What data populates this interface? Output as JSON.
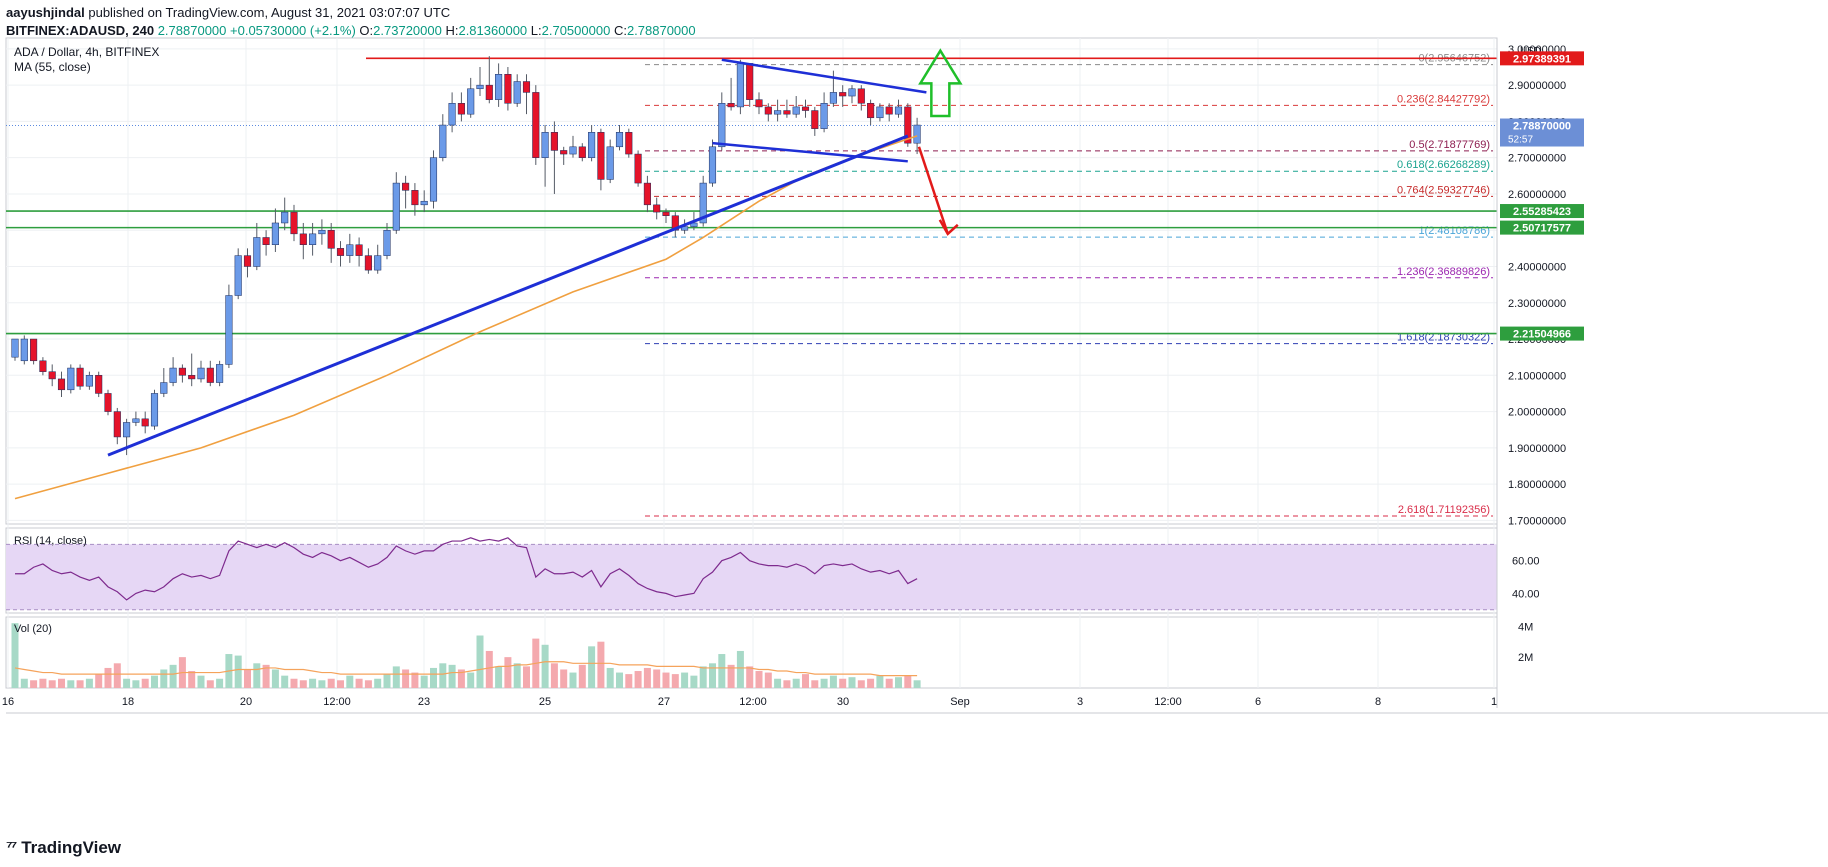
{
  "header": {
    "publisher": "aayushjindal",
    "published_text": " published on TradingView.com, August 31, 2021 03:07:07 UTC",
    "symbol": "BITFINEX:ADAUSD, 240",
    "last": "2.78870000",
    "change": "+0.05730000 (+2.1%)",
    "o_label": "O:",
    "o": "2.73720000",
    "h_label": "H:",
    "h": "2.81360000",
    "l_label": "L:",
    "l": "2.70500000",
    "c_label": "C:",
    "c": "2.78870000"
  },
  "footer": {
    "brand": "TradingView"
  },
  "colors": {
    "up": "#26a69a",
    "down": "#ef5350",
    "trendline": "#1e2fd6",
    "ma": "#f0a040",
    "support": "#2e9e3e",
    "resistance": "#e21a1a",
    "rsi": "#7e2b8e",
    "rsi_band": "#e6d7f5"
  },
  "chart_data": [
    {
      "type": "candlestick",
      "title": "ADA / Dollar, 4h, BITFINEX",
      "indicator": "MA (55, close)",
      "currency": "USD",
      "yticks": [
        "3.00000000",
        "2.90000000",
        "2.80000000",
        "2.70000000",
        "2.60000000",
        "2.50000000",
        "2.40000000",
        "2.30000000",
        "2.20000000",
        "2.10000000",
        "2.00000000",
        "1.90000000",
        "1.80000000",
        "1.70000000"
      ],
      "ylim": [
        1.69,
        3.03
      ],
      "xticks": [
        "16",
        "18",
        "20",
        "12:00",
        "23",
        "25",
        "27",
        "12:00",
        "30",
        "Sep",
        "3",
        "12:00",
        "6",
        "8",
        "1"
      ],
      "grid": true,
      "candles": [
        [
          2.15,
          2.2,
          2.15,
          2.14
        ],
        [
          2.14,
          2.2,
          2.21,
          2.13
        ],
        [
          2.2,
          2.14,
          2.2,
          2.13
        ],
        [
          2.14,
          2.11,
          2.15,
          2.1
        ],
        [
          2.11,
          2.09,
          2.13,
          2.07
        ],
        [
          2.09,
          2.06,
          2.11,
          2.04
        ],
        [
          2.06,
          2.12,
          2.13,
          2.05
        ],
        [
          2.12,
          2.07,
          2.13,
          2.06
        ],
        [
          2.07,
          2.1,
          2.11,
          2.06
        ],
        [
          2.1,
          2.05,
          2.11,
          2.04
        ],
        [
          2.05,
          2.0,
          2.06,
          1.99
        ],
        [
          2.0,
          1.93,
          2.01,
          1.91
        ],
        [
          1.93,
          1.97,
          1.98,
          1.88
        ],
        [
          1.97,
          1.98,
          2.0,
          1.96
        ],
        [
          1.98,
          1.96,
          2.0,
          1.94
        ],
        [
          1.96,
          2.05,
          2.06,
          1.95
        ],
        [
          2.05,
          2.08,
          2.12,
          2.04
        ],
        [
          2.08,
          2.12,
          2.15,
          2.07
        ],
        [
          2.12,
          2.1,
          2.13,
          2.08
        ],
        [
          2.1,
          2.09,
          2.16,
          2.07
        ],
        [
          2.09,
          2.12,
          2.14,
          2.08
        ],
        [
          2.12,
          2.08,
          2.14,
          2.07
        ],
        [
          2.08,
          2.13,
          2.14,
          2.07
        ],
        [
          2.13,
          2.32,
          2.35,
          2.12
        ],
        [
          2.32,
          2.43,
          2.45,
          2.31
        ],
        [
          2.43,
          2.4,
          2.45,
          2.37
        ],
        [
          2.4,
          2.48,
          2.52,
          2.39
        ],
        [
          2.48,
          2.46,
          2.5,
          2.43
        ],
        [
          2.46,
          2.52,
          2.56,
          2.44
        ],
        [
          2.52,
          2.55,
          2.59,
          2.5
        ],
        [
          2.55,
          2.49,
          2.57,
          2.47
        ],
        [
          2.49,
          2.46,
          2.52,
          2.42
        ],
        [
          2.46,
          2.49,
          2.52,
          2.43
        ],
        [
          2.49,
          2.5,
          2.53,
          2.46
        ],
        [
          2.5,
          2.45,
          2.52,
          2.41
        ],
        [
          2.45,
          2.43,
          2.47,
          2.4
        ],
        [
          2.43,
          2.46,
          2.49,
          2.41
        ],
        [
          2.46,
          2.43,
          2.48,
          2.4
        ],
        [
          2.43,
          2.39,
          2.45,
          2.38
        ],
        [
          2.39,
          2.43,
          2.46,
          2.38
        ],
        [
          2.43,
          2.5,
          2.52,
          2.42
        ],
        [
          2.5,
          2.63,
          2.66,
          2.49
        ],
        [
          2.63,
          2.61,
          2.65,
          2.56
        ],
        [
          2.61,
          2.57,
          2.63,
          2.54
        ],
        [
          2.57,
          2.58,
          2.61,
          2.55
        ],
        [
          2.58,
          2.7,
          2.72,
          2.56
        ],
        [
          2.7,
          2.79,
          2.82,
          2.69
        ],
        [
          2.79,
          2.85,
          2.88,
          2.77
        ],
        [
          2.85,
          2.82,
          2.88,
          2.8
        ],
        [
          2.82,
          2.89,
          2.92,
          2.81
        ],
        [
          2.89,
          2.9,
          2.95,
          2.87
        ],
        [
          2.9,
          2.86,
          2.98,
          2.85
        ],
        [
          2.86,
          2.93,
          2.96,
          2.84
        ],
        [
          2.93,
          2.85,
          2.95,
          2.83
        ],
        [
          2.85,
          2.91,
          2.93,
          2.84
        ],
        [
          2.91,
          2.88,
          2.93,
          2.82
        ],
        [
          2.88,
          2.7,
          2.9,
          2.68
        ],
        [
          2.7,
          2.77,
          2.79,
          2.62
        ],
        [
          2.77,
          2.72,
          2.8,
          2.6
        ],
        [
          2.72,
          2.71,
          2.73,
          2.68
        ],
        [
          2.71,
          2.73,
          2.76,
          2.7
        ],
        [
          2.73,
          2.7,
          2.74,
          2.69
        ],
        [
          2.7,
          2.77,
          2.79,
          2.69
        ],
        [
          2.77,
          2.64,
          2.78,
          2.61
        ],
        [
          2.64,
          2.73,
          2.75,
          2.63
        ],
        [
          2.73,
          2.77,
          2.79,
          2.72
        ],
        [
          2.77,
          2.71,
          2.78,
          2.7
        ],
        [
          2.71,
          2.63,
          2.72,
          2.62
        ],
        [
          2.63,
          2.57,
          2.65,
          2.55
        ],
        [
          2.57,
          2.55,
          2.59,
          2.53
        ],
        [
          2.55,
          2.54,
          2.56,
          2.52
        ],
        [
          2.54,
          2.5,
          2.55,
          2.48
        ],
        [
          2.5,
          2.51,
          2.53,
          2.49
        ],
        [
          2.51,
          2.52,
          2.55,
          2.5
        ],
        [
          2.52,
          2.63,
          2.65,
          2.51
        ],
        [
          2.63,
          2.73,
          2.75,
          2.62
        ],
        [
          2.73,
          2.85,
          2.88,
          2.72
        ],
        [
          2.85,
          2.84,
          2.92,
          2.83
        ],
        [
          2.84,
          2.96,
          2.97,
          2.82
        ],
        [
          2.96,
          2.86,
          2.96,
          2.84
        ],
        [
          2.86,
          2.84,
          2.88,
          2.82
        ],
        [
          2.84,
          2.82,
          2.85,
          2.8
        ],
        [
          2.82,
          2.83,
          2.86,
          2.8
        ],
        [
          2.83,
          2.82,
          2.86,
          2.81
        ],
        [
          2.82,
          2.84,
          2.87,
          2.81
        ],
        [
          2.84,
          2.83,
          2.86,
          2.81
        ],
        [
          2.83,
          2.78,
          2.84,
          2.76
        ],
        [
          2.78,
          2.85,
          2.88,
          2.77
        ],
        [
          2.85,
          2.88,
          2.94,
          2.84
        ],
        [
          2.88,
          2.87,
          2.9,
          2.84
        ],
        [
          2.87,
          2.89,
          2.9,
          2.85
        ],
        [
          2.89,
          2.85,
          2.9,
          2.83
        ],
        [
          2.85,
          2.81,
          2.86,
          2.79
        ],
        [
          2.81,
          2.84,
          2.85,
          2.8
        ],
        [
          2.84,
          2.82,
          2.85,
          2.8
        ],
        [
          2.82,
          2.84,
          2.86,
          2.81
        ],
        [
          2.84,
          2.74,
          2.85,
          2.73
        ],
        [
          2.74,
          2.79,
          2.81,
          2.71
        ]
      ],
      "ma_line": [
        [
          0,
          1.76
        ],
        [
          10,
          1.83
        ],
        [
          20,
          1.9
        ],
        [
          30,
          1.99
        ],
        [
          40,
          2.1
        ],
        [
          50,
          2.22
        ],
        [
          60,
          2.33
        ],
        [
          70,
          2.42
        ],
        [
          74,
          2.48
        ],
        [
          80,
          2.58
        ],
        [
          85,
          2.65
        ],
        [
          90,
          2.7
        ],
        [
          97,
          2.76
        ]
      ],
      "horizontal_levels": [
        {
          "price": 2.9739,
          "label": "2.97389391",
          "kind": "resistance"
        },
        {
          "price": 2.5529,
          "label": "2.55285423",
          "kind": "support"
        },
        {
          "price": 2.5072,
          "label": "2.50717577",
          "kind": "support"
        },
        {
          "price": 2.215,
          "label": "2.21504966",
          "kind": "support"
        }
      ],
      "last_price": {
        "price": 2.7887,
        "label": "2.78870000",
        "countdown": "52:57"
      },
      "fib_levels": [
        {
          "ratio": "0",
          "price": 2.95646752,
          "label": "0(2.95646752)",
          "color": "#8a8a8a"
        },
        {
          "ratio": "0.236",
          "price": 2.84427792,
          "label": "0.236(2.84427792)",
          "color": "#d93a3a"
        },
        {
          "ratio": "0.5",
          "price": 2.71877769,
          "label": "0.5(2.71877769)",
          "color": "#8e1e50"
        },
        {
          "ratio": "0.618",
          "price": 2.66268289,
          "label": "0.618(2.66268289)",
          "color": "#1aa38f"
        },
        {
          "ratio": "0.764",
          "price": 2.59327746,
          "label": "0.764(2.59327746)",
          "color": "#c52b2b"
        },
        {
          "ratio": "1",
          "price": 2.48108786,
          "label": "1(2.48108786)",
          "color": "#4aa5d8"
        },
        {
          "ratio": "1.236",
          "price": 2.36889826,
          "label": "1.236(2.36889826)",
          "color": "#9c27b0"
        },
        {
          "ratio": "1.618",
          "price": 2.18730322,
          "label": "1.618(2.18730322)",
          "color": "#2e3fb3"
        },
        {
          "ratio": "2.618",
          "price": 1.71192356,
          "label": "2.618(1.71192356)",
          "color": "#d92e4a"
        }
      ]
    },
    {
      "type": "line",
      "title": "RSI (14, close)",
      "yticks": [
        "60.00",
        "40.00"
      ],
      "ylim": [
        28,
        80
      ],
      "band": [
        30,
        70
      ],
      "values": [
        52,
        52,
        56,
        58,
        54,
        52,
        53,
        50,
        48,
        50,
        44,
        41,
        36,
        40,
        42,
        41,
        44,
        49,
        52,
        50,
        51,
        49,
        51,
        66,
        72,
        70,
        68,
        70,
        68,
        71,
        68,
        64,
        62,
        65,
        63,
        60,
        62,
        59,
        56,
        58,
        62,
        69,
        66,
        64,
        66,
        66,
        70,
        72,
        72,
        74,
        72,
        73,
        72,
        74,
        69,
        68,
        50,
        55,
        52,
        52,
        53,
        50,
        54,
        44,
        52,
        55,
        51,
        46,
        43,
        41,
        40,
        38,
        39,
        40,
        49,
        53,
        60,
        62,
        65,
        60,
        58,
        57,
        57,
        56,
        58,
        56,
        52,
        57,
        58,
        57,
        58,
        55,
        53,
        54,
        52,
        54,
        46,
        49
      ]
    },
    {
      "type": "bar",
      "title": "Vol (20)",
      "yticks": [
        "4M",
        "2M"
      ],
      "ylim": [
        0,
        4.6
      ],
      "values": [
        4.2,
        0.6,
        0.5,
        0.6,
        0.5,
        0.6,
        0.5,
        0.5,
        0.6,
        0.9,
        1.3,
        1.6,
        0.6,
        0.5,
        0.6,
        0.8,
        1.2,
        1.5,
        2.0,
        1.1,
        0.8,
        0.5,
        0.6,
        2.2,
        2.1,
        1.2,
        1.6,
        1.5,
        1.2,
        0.8,
        0.6,
        0.5,
        0.6,
        0.5,
        0.6,
        0.5,
        0.8,
        0.6,
        0.5,
        0.6,
        0.9,
        1.4,
        1.2,
        1.0,
        0.8,
        1.3,
        1.6,
        1.5,
        1.2,
        1.0,
        3.4,
        2.4,
        1.4,
        2.0,
        1.6,
        1.4,
        3.2,
        2.8,
        1.6,
        1.2,
        1.0,
        1.5,
        2.7,
        3.0,
        1.3,
        1.0,
        0.9,
        1.1,
        1.3,
        1.2,
        1.0,
        0.9,
        1.0,
        0.8,
        1.4,
        1.6,
        2.2,
        1.5,
        2.4,
        1.4,
        1.1,
        1.0,
        0.6,
        0.5,
        0.6,
        0.9,
        0.5,
        0.6,
        0.8,
        0.6,
        0.7,
        0.5,
        0.6,
        0.8,
        0.6,
        0.7,
        0.8,
        0.5
      ],
      "ma_values": [
        1.3,
        1.2,
        1.1,
        1.0,
        1.0,
        0.9,
        0.9,
        0.9,
        0.9,
        0.9,
        0.9,
        0.9,
        0.9,
        0.9,
        0.9,
        0.9,
        0.9,
        0.9,
        1.0,
        1.0,
        1.0,
        1.0,
        1.0,
        1.1,
        1.2,
        1.2,
        1.2,
        1.3,
        1.3,
        1.2,
        1.2,
        1.2,
        1.1,
        1.0,
        1.0,
        0.9,
        0.9,
        0.9,
        0.9,
        0.9,
        0.9,
        0.9,
        0.9,
        0.9,
        0.9,
        0.9,
        0.9,
        1.0,
        1.0,
        1.1,
        1.2,
        1.3,
        1.4,
        1.4,
        1.5,
        1.5,
        1.6,
        1.7,
        1.7,
        1.7,
        1.6,
        1.6,
        1.6,
        1.6,
        1.6,
        1.5,
        1.5,
        1.5,
        1.5,
        1.4,
        1.4,
        1.4,
        1.4,
        1.4,
        1.3,
        1.3,
        1.3,
        1.3,
        1.3,
        1.3,
        1.2,
        1.2,
        1.1,
        1.1,
        1.0,
        1.0,
        0.9,
        0.9,
        0.9,
        0.9,
        0.9,
        0.9,
        0.9,
        0.8,
        0.8,
        0.8,
        0.8,
        0.8
      ]
    }
  ]
}
